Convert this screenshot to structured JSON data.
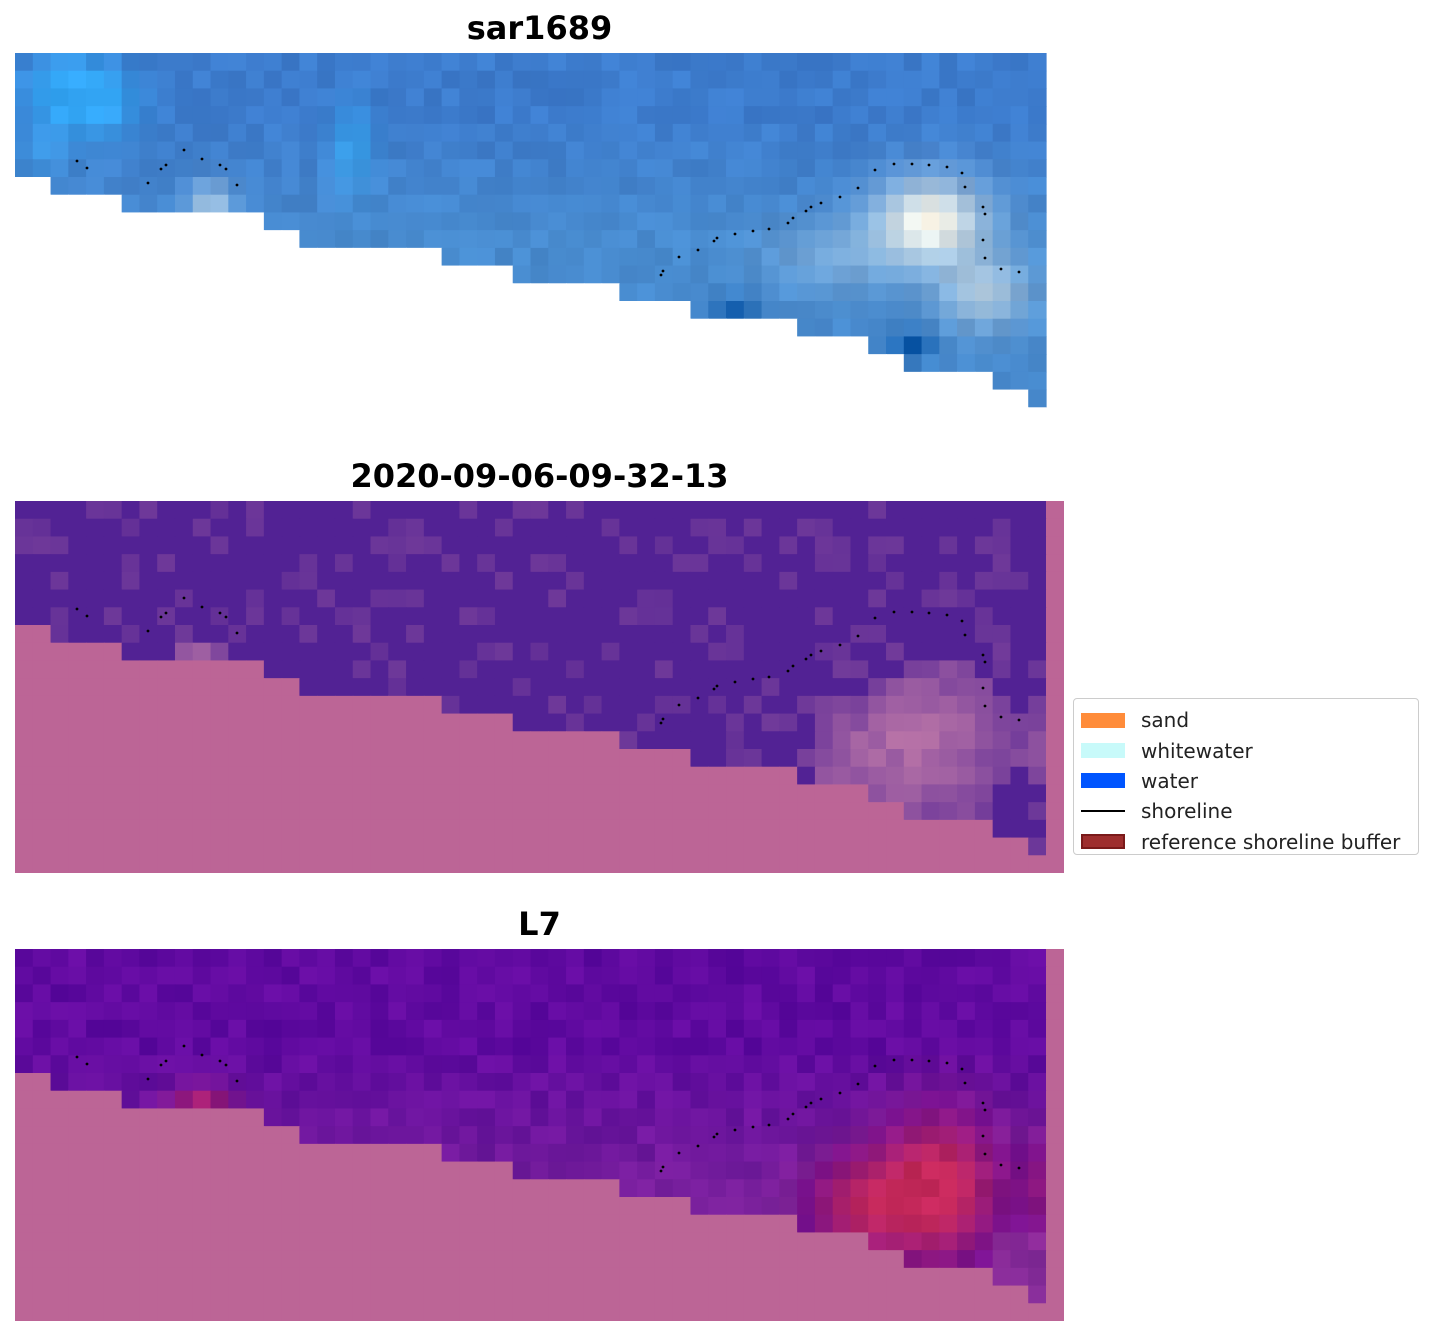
{
  "panels": [
    {
      "id": "rgb",
      "title": "sar1689"
    },
    {
      "id": "classification",
      "title": "2020-09-06-09-32-13"
    },
    {
      "id": "index",
      "title": "L7"
    }
  ],
  "legend": {
    "items": [
      {
        "label": "sand",
        "kind": "patch",
        "color": "#ff8c3a"
      },
      {
        "label": "whitewater",
        "kind": "patch",
        "color": "#c8fafa"
      },
      {
        "label": "water",
        "kind": "patch",
        "color": "#0055ff"
      },
      {
        "label": "shoreline",
        "kind": "line",
        "color": "#000000"
      },
      {
        "label": "reference shoreline buffer",
        "kind": "patch",
        "color": "#9e2e2e",
        "edge": "#7a1a1a"
      }
    ]
  },
  "colors": {
    "land_mask": "#bc6596",
    "classified_water": "#522294",
    "shoreline_points": "#000000"
  }
}
